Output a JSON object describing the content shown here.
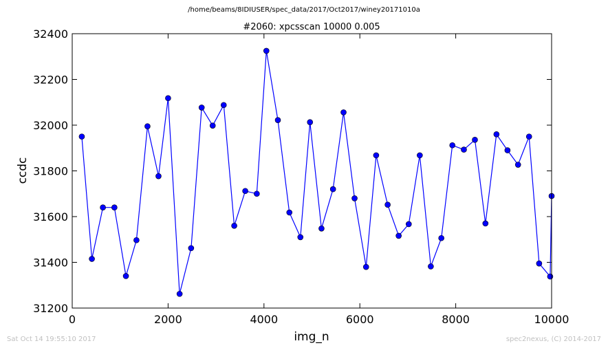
{
  "figure": {
    "suptitle": "/home/beams/8IDIUSER/spec_data/2017/Oct2017/winey20171010a",
    "timestamp": "Sat Oct 14 19:55:10 2017",
    "credit": "spec2nexus, (C) 2014-2017"
  },
  "chart_data": {
    "type": "line",
    "title": "#2060: xpcsscan 10000 0.005",
    "xlabel": "img_n",
    "ylabel": "ccdc",
    "xlim": [
      0,
      10000
    ],
    "ylim": [
      31200,
      32400
    ],
    "xticks": [
      0,
      2000,
      4000,
      6000,
      8000,
      10000
    ],
    "yticks": [
      31200,
      31400,
      31600,
      31800,
      32000,
      32200,
      32400
    ],
    "grid": false,
    "line_color": "#0000ff",
    "marker": "circle",
    "series": [
      {
        "x": [
          200,
          410,
          640,
          880,
          1120,
          1340,
          1570,
          1800,
          2000,
          2240,
          2480,
          2700,
          2930,
          3160,
          3380,
          3610,
          3850,
          4050,
          4290,
          4530,
          4760,
          4960,
          5200,
          5440,
          5660,
          5890,
          6130,
          6340,
          6580,
          6810,
          7020,
          7250,
          7480,
          7700,
          7930,
          8170,
          8400,
          8620,
          8850,
          9080,
          9300,
          9530,
          9740,
          9970,
          10000
        ],
        "y": [
          31950,
          31415,
          31640,
          31640,
          31340,
          31497,
          31995,
          31777,
          32118,
          31262,
          31462,
          32077,
          31998,
          32088,
          31560,
          31712,
          31700,
          32325,
          32022,
          31618,
          31510,
          32013,
          31548,
          31720,
          32056,
          31680,
          31380,
          31868,
          31652,
          31516,
          31567,
          31868,
          31382,
          31506,
          31912,
          31893,
          31936,
          31570,
          31960,
          31890,
          31827,
          31950,
          31395,
          31338,
          31690
        ]
      }
    ]
  }
}
